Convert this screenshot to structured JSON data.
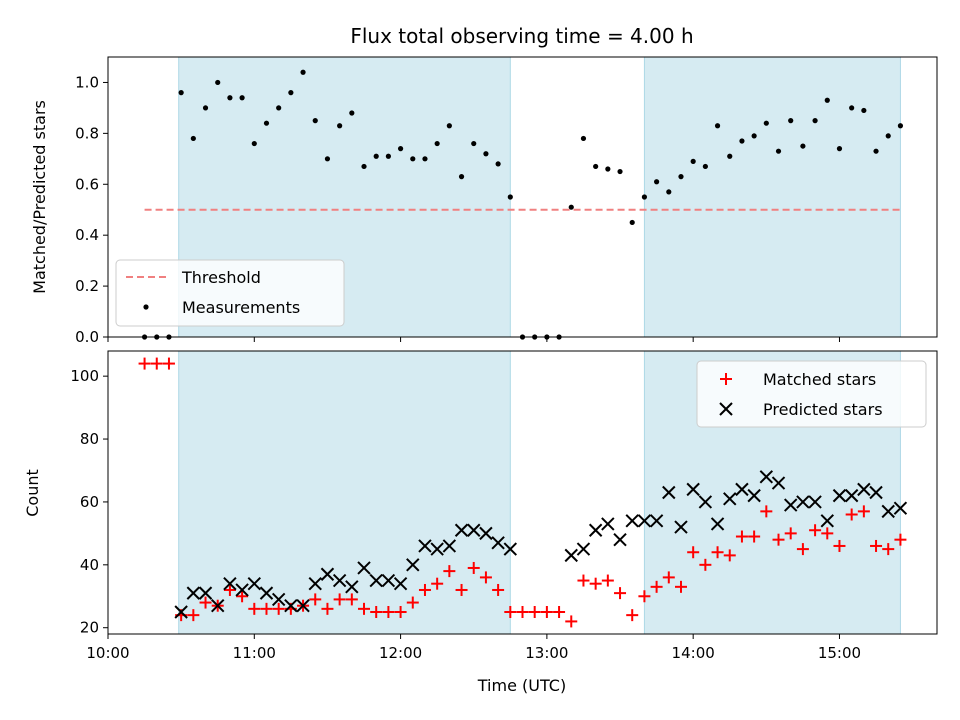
{
  "chart_data": [
    {
      "type": "scatter",
      "title": "Flux total observing time = 4.00 h",
      "ylabel": "Matched/Predicted stars",
      "xlim": [
        "10:00",
        "15:40"
      ],
      "ylim": [
        0,
        1.1
      ],
      "yticks": [
        "0.0",
        "0.2",
        "0.4",
        "0.6",
        "0.8",
        "1.0"
      ],
      "shaded_intervals": [
        [
          "10:29",
          "12:45"
        ],
        [
          "13:40",
          "15:25"
        ]
      ],
      "legend_position": "lower-left",
      "threshold": {
        "name": "Threshold",
        "y": 0.5,
        "x": [
          "10:15",
          "15:25"
        ],
        "color": "#f08080"
      },
      "series": [
        {
          "name": "Measurements",
          "marker": "dot",
          "color": "#000000",
          "x": [
            "10:15",
            "10:20",
            "10:25",
            "10:30",
            "10:35",
            "10:40",
            "10:45",
            "10:50",
            "10:55",
            "11:00",
            "11:05",
            "11:10",
            "11:15",
            "11:20",
            "11:25",
            "11:30",
            "11:35",
            "11:40",
            "11:45",
            "11:50",
            "11:55",
            "12:00",
            "12:05",
            "12:10",
            "12:15",
            "12:20",
            "12:25",
            "12:30",
            "12:35",
            "12:40",
            "12:45",
            "12:50",
            "12:55",
            "13:00",
            "13:05",
            "13:10",
            "13:15",
            "13:20",
            "13:25",
            "13:30",
            "13:35",
            "13:40",
            "13:45",
            "13:50",
            "13:55",
            "14:00",
            "14:05",
            "14:10",
            "14:15",
            "14:20",
            "14:25",
            "14:30",
            "14:35",
            "14:40",
            "14:45",
            "14:50",
            "14:55",
            "15:00",
            "15:05",
            "15:10",
            "15:15",
            "15:20",
            "15:25"
          ],
          "y": [
            0.0,
            0.0,
            0.0,
            0.96,
            0.78,
            0.9,
            1.0,
            0.94,
            0.94,
            0.76,
            0.84,
            0.9,
            0.96,
            1.04,
            0.85,
            0.7,
            0.83,
            0.88,
            0.67,
            0.71,
            0.71,
            0.74,
            0.7,
            0.7,
            0.76,
            0.83,
            0.63,
            0.76,
            0.72,
            0.68,
            0.55,
            0.0,
            0.0,
            0.0,
            0.0,
            0.51,
            0.78,
            0.67,
            0.66,
            0.65,
            0.45,
            0.55,
            0.61,
            0.57,
            0.63,
            0.69,
            0.67,
            0.83,
            0.71,
            0.77,
            0.79,
            0.84,
            0.73,
            0.85,
            0.75,
            0.85,
            0.93,
            0.74,
            0.9,
            0.89,
            0.73,
            0.79,
            0.83
          ]
        }
      ]
    },
    {
      "type": "scatter",
      "xlabel": "Time (UTC)",
      "ylabel": "Count",
      "xlim": [
        "10:00",
        "15:40"
      ],
      "xticks": [
        "10:00",
        "11:00",
        "12:00",
        "13:00",
        "14:00",
        "15:00"
      ],
      "ylim": [
        18,
        108
      ],
      "yticks": [
        "20",
        "40",
        "60",
        "80",
        "100"
      ],
      "shaded_intervals": [
        [
          "10:29",
          "12:45"
        ],
        [
          "13:40",
          "15:25"
        ]
      ],
      "legend_position": "upper-right",
      "series": [
        {
          "name": "Matched stars",
          "marker": "plus",
          "color": "#ff0000",
          "x": [
            "10:15",
            "10:20",
            "10:25",
            "10:30",
            "10:35",
            "10:40",
            "10:45",
            "10:50",
            "10:55",
            "11:00",
            "11:05",
            "11:10",
            "11:15",
            "11:20",
            "11:25",
            "11:30",
            "11:35",
            "11:40",
            "11:45",
            "11:50",
            "11:55",
            "12:00",
            "12:05",
            "12:10",
            "12:15",
            "12:20",
            "12:25",
            "12:30",
            "12:35",
            "12:40",
            "12:45",
            "12:50",
            "12:55",
            "13:00",
            "13:05",
            "13:10",
            "13:15",
            "13:20",
            "13:25",
            "13:30",
            "13:35",
            "13:40",
            "13:45",
            "13:50",
            "13:55",
            "14:00",
            "14:05",
            "14:10",
            "14:15",
            "14:20",
            "14:25",
            "14:30",
            "14:35",
            "14:40",
            "14:45",
            "14:50",
            "14:55",
            "15:00",
            "15:05",
            "15:10",
            "15:15",
            "15:20",
            "15:25"
          ],
          "y": [
            104,
            104,
            104,
            24,
            24,
            28,
            27,
            32,
            30,
            26,
            26,
            26,
            26,
            27,
            29,
            26,
            29,
            29,
            26,
            25,
            25,
            25,
            28,
            32,
            34,
            38,
            32,
            39,
            36,
            32,
            25,
            25,
            25,
            25,
            25,
            22,
            35,
            34,
            35,
            31,
            24,
            30,
            33,
            36,
            33,
            44,
            40,
            44,
            43,
            49,
            49,
            57,
            48,
            50,
            45,
            51,
            50,
            46,
            56,
            57,
            46,
            45,
            48
          ]
        },
        {
          "name": "Predicted stars",
          "marker": "x",
          "color": "#000000",
          "x": [
            "10:30",
            "10:35",
            "10:40",
            "10:45",
            "10:50",
            "10:55",
            "11:00",
            "11:05",
            "11:10",
            "11:15",
            "11:20",
            "11:25",
            "11:30",
            "11:35",
            "11:40",
            "11:45",
            "11:50",
            "11:55",
            "12:00",
            "12:05",
            "12:10",
            "12:15",
            "12:20",
            "12:25",
            "12:30",
            "12:35",
            "12:40",
            "12:45",
            "13:10",
            "13:15",
            "13:20",
            "13:25",
            "13:30",
            "13:35",
            "13:40",
            "13:45",
            "13:50",
            "13:55",
            "14:00",
            "14:05",
            "14:10",
            "14:15",
            "14:20",
            "14:25",
            "14:30",
            "14:35",
            "14:40",
            "14:45",
            "14:50",
            "14:55",
            "15:00",
            "15:05",
            "15:10",
            "15:15",
            "15:20",
            "15:25"
          ],
          "y": [
            25,
            31,
            31,
            27,
            34,
            32,
            34,
            31,
            29,
            27,
            27,
            34,
            37,
            35,
            33,
            39,
            35,
            35,
            34,
            40,
            46,
            45,
            46,
            51,
            51,
            50,
            47,
            45,
            43,
            45,
            51,
            53,
            48,
            54,
            54,
            54,
            63,
            52,
            64,
            60,
            53,
            61,
            64,
            62,
            68,
            66,
            59,
            60,
            60,
            54,
            62,
            62,
            64,
            63,
            57,
            58
          ]
        }
      ]
    }
  ]
}
